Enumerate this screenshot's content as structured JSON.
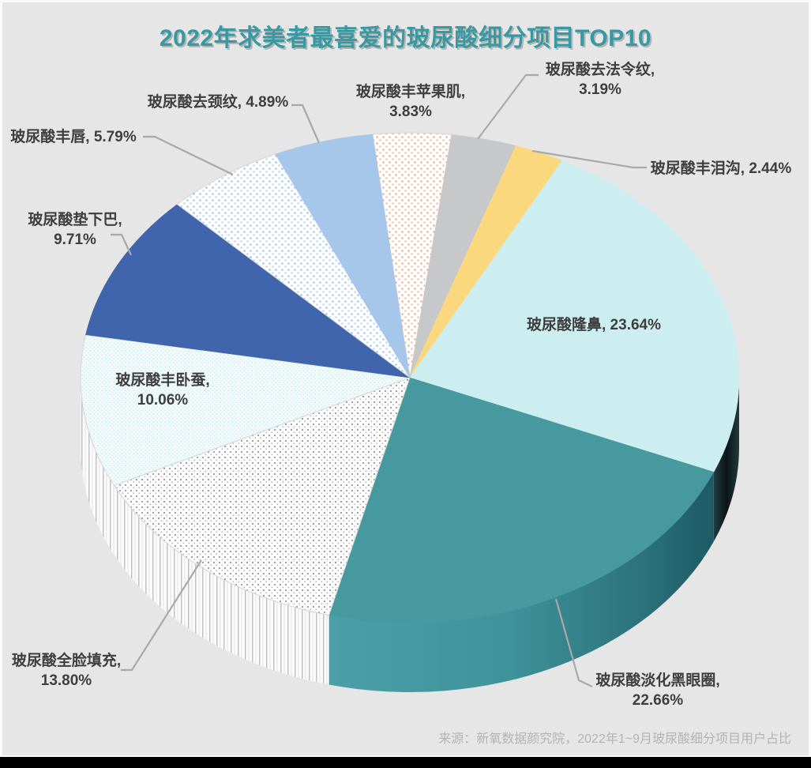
{
  "page": {
    "title": "2022年求美者最喜爱的玻尿酸细分项目TOP10",
    "source_note": "来源：新氧数据颜究院，2022年1~9月玻尿酸细分项目用户占比"
  },
  "chart_data": {
    "type": "pie",
    "title": "2022年求美者最喜爱的玻尿酸细分项目TOP10",
    "unit": "%",
    "style": "3d-pie",
    "legend": "none",
    "labels_shown": true,
    "start_angle_deg": -6.5,
    "slices": [
      {
        "name": "玻尿酸丰苹果肌",
        "value": 3.83,
        "label_line1": "玻尿酸丰苹果肌,",
        "label_line2": "3.83%",
        "color": "#ffffff",
        "pattern": "orange-dots"
      },
      {
        "name": "玻尿酸去法令纹",
        "value": 3.19,
        "label_line1": "玻尿酸去法令纹,",
        "label_line2": "3.19%",
        "color": "#c7c8c9"
      },
      {
        "name": "玻尿酸丰泪沟",
        "value": 2.44,
        "label_line1": "玻尿酸丰泪沟, 2.44%",
        "color": "#fbd87e"
      },
      {
        "name": "玻尿酸隆鼻",
        "value": 23.64,
        "label_line1": "玻尿酸隆鼻, 23.64%",
        "color": "#cdeef1",
        "side": "grad-dark"
      },
      {
        "name": "玻尿酸淡化黑眼圈",
        "value": 22.66,
        "label_line1": "玻尿酸淡化黑眼圈,",
        "label_line2": "22.66%",
        "color": "#46999f",
        "side": "grad-teal"
      },
      {
        "name": "玻尿酸全脸填充",
        "value": 13.8,
        "label_line1": "玻尿酸全脸填充,",
        "label_line2": "13.80%",
        "color": "#ffffff",
        "pattern": "gray-dots",
        "side": "stripes"
      },
      {
        "name": "玻尿酸丰卧蚕",
        "value": 10.06,
        "label_line1": "玻尿酸丰卧蚕,",
        "label_line2": "10.06%",
        "color": "#f3fbfc",
        "pattern": "cyan-hatch",
        "side": "stripes"
      },
      {
        "name": "玻尿酸垫下巴",
        "value": 9.71,
        "label_line1": "玻尿酸垫下巴,",
        "label_line2": "9.71%",
        "color": "#4065ad"
      },
      {
        "name": "玻尿酸丰唇",
        "value": 5.79,
        "label_line1": "玻尿酸丰唇, 5.79%",
        "color": "#ffffff",
        "pattern": "blue-dots"
      },
      {
        "name": "玻尿酸去颈纹",
        "value": 4.89,
        "label_line1": "玻尿酸去颈纹, 4.89%",
        "color": "#a6c7ea"
      }
    ]
  },
  "colors": {
    "title": "#3899a2",
    "label_text": "#3e3e3e",
    "leader_line": "#a9a9a9",
    "background": "#e6e6e7",
    "source_text": "#b3b3b3"
  }
}
